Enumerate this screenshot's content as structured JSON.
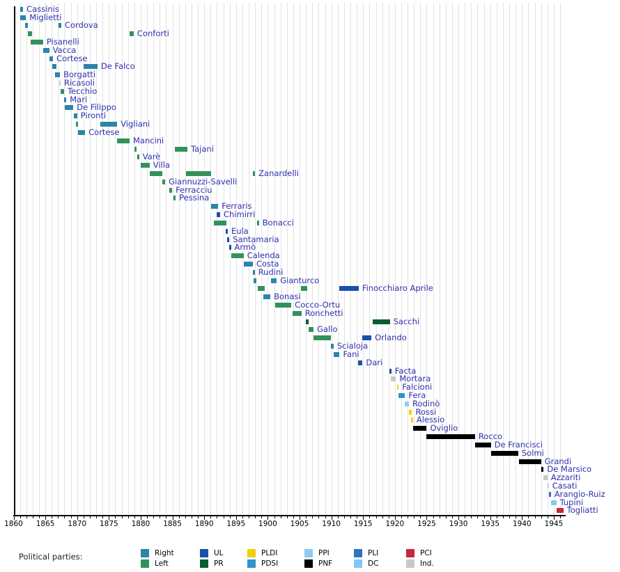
{
  "legend": {
    "title": "Political parties:",
    "columns": [
      [
        "right",
        "left"
      ],
      [
        "ul",
        "pr"
      ],
      [
        "pldi",
        "pdsi"
      ],
      [
        "ppi",
        "pnf"
      ],
      [
        "pli",
        "dc"
      ],
      [
        "pci",
        "ind"
      ]
    ],
    "position": "bottom"
  },
  "chart_data": {
    "type": "bar",
    "subtype": "gantt-timeline",
    "title": "",
    "xlabel": "",
    "ylabel": "",
    "x_axis": {
      "min": 1860,
      "max": 1946.8,
      "labeled_tick_years": [
        1860,
        1865,
        1870,
        1875,
        1880,
        1885,
        1890,
        1895,
        1900,
        1905,
        1910,
        1915,
        1920,
        1925,
        1930,
        1935,
        1940,
        1945
      ],
      "minor_tick_interval": 1
    },
    "grid": "yearly-vertical",
    "parties": {
      "right": {
        "label": "Right",
        "color": "#2a85a8"
      },
      "left": {
        "label": "Left",
        "color": "#33915c"
      },
      "ul": {
        "label": "UL",
        "color": "#1a4fae"
      },
      "pr": {
        "label": "PR",
        "color": "#0b5d31"
      },
      "pldi": {
        "label": "PLDI",
        "color": "#f2ce0d"
      },
      "pdsi": {
        "label": "PDSI",
        "color": "#2d95c8"
      },
      "ppi": {
        "label": "PPI",
        "color": "#8ecbf2"
      },
      "pnf": {
        "label": "PNF",
        "color": "#000000"
      },
      "pli": {
        "label": "PLI",
        "color": "#3173bd"
      },
      "dc": {
        "label": "DC",
        "color": "#85c6f4"
      },
      "pci": {
        "label": "PCI",
        "color": "#c4293a"
      },
      "ind": {
        "label": "Ind.",
        "color": "#c8c8c8"
      }
    },
    "ministers": [
      {
        "name": "Cassinis",
        "terms": [
          {
            "from": 1861.05,
            "to": 1861.5,
            "party": "right"
          }
        ]
      },
      {
        "name": "Miglietti",
        "terms": [
          {
            "from": 1861.0,
            "to": 1861.95,
            "party": "right"
          }
        ]
      },
      {
        "name": "Cordova",
        "terms": [
          {
            "from": 1861.8,
            "to": 1862.25,
            "party": "right"
          },
          {
            "from": 1867.1,
            "to": 1867.5,
            "party": "right"
          }
        ]
      },
      {
        "name": "Conforti",
        "terms": [
          {
            "from": 1862.25,
            "to": 1862.9,
            "party": "left"
          },
          {
            "from": 1878.25,
            "to": 1878.9,
            "party": "left"
          }
        ]
      },
      {
        "name": "Pisanelli",
        "terms": [
          {
            "from": 1862.7,
            "to": 1864.65,
            "party": "left"
          }
        ]
      },
      {
        "name": "Vacca",
        "terms": [
          {
            "from": 1864.65,
            "to": 1865.6,
            "party": "right"
          }
        ]
      },
      {
        "name": "Cortese",
        "terms": [
          {
            "from": 1865.6,
            "to": 1866.2,
            "party": "right"
          }
        ]
      },
      {
        "name": "De Falco",
        "terms": [
          {
            "from": 1866.1,
            "to": 1866.7,
            "party": "right"
          },
          {
            "from": 1871.0,
            "to": 1873.2,
            "party": "right"
          }
        ]
      },
      {
        "name": "Borgatti",
        "terms": [
          {
            "from": 1866.5,
            "to": 1867.3,
            "party": "right"
          }
        ]
      },
      {
        "name": "Ricasoli",
        "terms": [
          {
            "from": 1867.2,
            "to": 1867.4,
            "party": "ind"
          }
        ]
      },
      {
        "name": "Tecchio",
        "terms": [
          {
            "from": 1867.4,
            "to": 1867.95,
            "party": "left"
          }
        ]
      },
      {
        "name": "Mari",
        "terms": [
          {
            "from": 1867.95,
            "to": 1868.3,
            "party": "right"
          }
        ]
      },
      {
        "name": "De Filippo",
        "terms": [
          {
            "from": 1868.1,
            "to": 1869.4,
            "party": "right"
          }
        ]
      },
      {
        "name": "Pironti",
        "terms": [
          {
            "from": 1869.5,
            "to": 1870.0,
            "party": "right"
          }
        ]
      },
      {
        "name": "Vigliani",
        "terms": [
          {
            "from": 1869.85,
            "to": 1870.1,
            "party": "left"
          },
          {
            "from": 1873.6,
            "to": 1876.3,
            "party": "right"
          }
        ]
      },
      {
        "name": "Cortese",
        "terms": [
          {
            "from": 1870.1,
            "to": 1871.25,
            "party": "right"
          }
        ]
      },
      {
        "name": "Mancini",
        "terms": [
          {
            "from": 1876.3,
            "to": 1878.25,
            "party": "left"
          }
        ]
      },
      {
        "name": "Tajani",
        "terms": [
          {
            "from": 1879.0,
            "to": 1879.35,
            "party": "left"
          },
          {
            "from": 1885.4,
            "to": 1887.35,
            "party": "left"
          }
        ]
      },
      {
        "name": "Varè",
        "terms": [
          {
            "from": 1879.45,
            "to": 1879.75,
            "party": "left"
          }
        ]
      },
      {
        "name": "Villa",
        "terms": [
          {
            "from": 1880.0,
            "to": 1881.4,
            "party": "left"
          }
        ]
      },
      {
        "name": "Zanardelli",
        "terms": [
          {
            "from": 1881.4,
            "to": 1883.4,
            "party": "left"
          },
          {
            "from": 1887.1,
            "to": 1891.05,
            "party": "left"
          },
          {
            "from": 1897.6,
            "to": 1898.0,
            "party": "left"
          }
        ]
      },
      {
        "name": "Giannuzzi-Savelli",
        "terms": [
          {
            "from": 1883.4,
            "to": 1883.85,
            "party": "left"
          }
        ]
      },
      {
        "name": "Ferracciu",
        "terms": [
          {
            "from": 1884.5,
            "to": 1884.95,
            "party": "left"
          }
        ]
      },
      {
        "name": "Pessina",
        "terms": [
          {
            "from": 1885.15,
            "to": 1885.5,
            "party": "left"
          }
        ]
      },
      {
        "name": "Ferraris",
        "terms": [
          {
            "from": 1891.1,
            "to": 1892.2,
            "party": "right"
          }
        ]
      },
      {
        "name": "Chimirri",
        "terms": [
          {
            "from": 1892.0,
            "to": 1892.5,
            "party": "ul"
          }
        ]
      },
      {
        "name": "Bonacci",
        "terms": [
          {
            "from": 1891.5,
            "to": 1893.5,
            "party": "left"
          },
          {
            "from": 1898.3,
            "to": 1898.6,
            "party": "left"
          }
        ]
      },
      {
        "name": "Eula",
        "terms": [
          {
            "from": 1893.4,
            "to": 1893.7,
            "party": "ul"
          }
        ]
      },
      {
        "name": "Santamaria",
        "terms": [
          {
            "from": 1893.6,
            "to": 1893.95,
            "party": "ul"
          }
        ]
      },
      {
        "name": "Armò",
        "terms": [
          {
            "from": 1893.9,
            "to": 1894.2,
            "party": "ul"
          }
        ]
      },
      {
        "name": "Calenda",
        "terms": [
          {
            "from": 1894.25,
            "to": 1896.2,
            "party": "left"
          }
        ]
      },
      {
        "name": "Costa",
        "terms": [
          {
            "from": 1896.2,
            "to": 1897.65,
            "party": "right"
          }
        ]
      },
      {
        "name": "Rudinì",
        "terms": [
          {
            "from": 1897.65,
            "to": 1897.95,
            "party": "right"
          }
        ]
      },
      {
        "name": "Gianturco",
        "terms": [
          {
            "from": 1897.8,
            "to": 1898.15,
            "party": "right"
          },
          {
            "from": 1900.5,
            "to": 1901.4,
            "party": "right"
          }
        ]
      },
      {
        "name": "Finocchiaro Aprile",
        "terms": [
          {
            "from": 1898.4,
            "to": 1899.5,
            "party": "left"
          },
          {
            "from": 1905.2,
            "to": 1906.2,
            "party": "left"
          },
          {
            "from": 1911.2,
            "to": 1914.3,
            "party": "ul"
          }
        ]
      },
      {
        "name": "Bonasi",
        "terms": [
          {
            "from": 1899.3,
            "to": 1900.4,
            "party": "right"
          }
        ]
      },
      {
        "name": "Cocco-Ortu",
        "terms": [
          {
            "from": 1901.2,
            "to": 1903.7,
            "party": "left"
          }
        ]
      },
      {
        "name": "Ronchetti",
        "terms": [
          {
            "from": 1903.9,
            "to": 1905.3,
            "party": "left"
          }
        ]
      },
      {
        "name": "Sacchi",
        "terms": [
          {
            "from": 1906.0,
            "to": 1906.4,
            "party": "pr"
          },
          {
            "from": 1916.5,
            "to": 1919.2,
            "party": "pr"
          }
        ]
      },
      {
        "name": "Gallo",
        "terms": [
          {
            "from": 1906.4,
            "to": 1907.2,
            "party": "left"
          }
        ]
      },
      {
        "name": "Orlando",
        "terms": [
          {
            "from": 1907.2,
            "to": 1909.9,
            "party": "left"
          },
          {
            "from": 1914.9,
            "to": 1916.3,
            "party": "ul"
          }
        ]
      },
      {
        "name": "Scialoja",
        "terms": [
          {
            "from": 1909.9,
            "to": 1910.35,
            "party": "right"
          }
        ]
      },
      {
        "name": "Fani",
        "terms": [
          {
            "from": 1910.35,
            "to": 1911.3,
            "party": "right"
          }
        ]
      },
      {
        "name": "Dari",
        "terms": [
          {
            "from": 1914.2,
            "to": 1914.9,
            "party": "ul"
          }
        ]
      },
      {
        "name": "Facta",
        "terms": [
          {
            "from": 1919.1,
            "to": 1919.45,
            "party": "ul"
          }
        ]
      },
      {
        "name": "Mortara",
        "terms": [
          {
            "from": 1919.4,
            "to": 1920.15,
            "party": "ind"
          }
        ]
      },
      {
        "name": "Falcioni",
        "terms": [
          {
            "from": 1920.3,
            "to": 1920.6,
            "party": "pldi"
          }
        ]
      },
      {
        "name": "Fera",
        "terms": [
          {
            "from": 1920.6,
            "to": 1921.6,
            "party": "pdsi"
          }
        ]
      },
      {
        "name": "Rodinò",
        "terms": [
          {
            "from": 1921.5,
            "to": 1922.2,
            "party": "ppi"
          }
        ]
      },
      {
        "name": "Rossi",
        "terms": [
          {
            "from": 1922.2,
            "to": 1922.7,
            "party": "pldi"
          }
        ]
      },
      {
        "name": "Alessio",
        "terms": [
          {
            "from": 1922.5,
            "to": 1922.85,
            "party": "pldi"
          }
        ]
      },
      {
        "name": "Oviglio",
        "terms": [
          {
            "from": 1922.9,
            "to": 1925.0,
            "party": "pnf"
          }
        ]
      },
      {
        "name": "Rocco",
        "terms": [
          {
            "from": 1925.0,
            "to": 1932.6,
            "party": "pnf"
          }
        ]
      },
      {
        "name": "De Francisci",
        "terms": [
          {
            "from": 1932.6,
            "to": 1935.1,
            "party": "pnf"
          }
        ]
      },
      {
        "name": "Solmi",
        "terms": [
          {
            "from": 1935.1,
            "to": 1939.4,
            "party": "pnf"
          }
        ]
      },
      {
        "name": "Grandi",
        "terms": [
          {
            "from": 1939.5,
            "to": 1943.0,
            "party": "pnf"
          }
        ]
      },
      {
        "name": "De Marsico",
        "terms": [
          {
            "from": 1943.0,
            "to": 1943.4,
            "party": "pnf"
          }
        ]
      },
      {
        "name": "Azzariti",
        "terms": [
          {
            "from": 1943.4,
            "to": 1944.0,
            "party": "ind"
          }
        ]
      },
      {
        "name": "Casati",
        "terms": [
          {
            "from": 1944.0,
            "to": 1944.2,
            "party": "ind"
          }
        ]
      },
      {
        "name": "Arangio-Ruiz",
        "terms": [
          {
            "from": 1944.2,
            "to": 1944.55,
            "party": "pli"
          }
        ]
      },
      {
        "name": "Tupini",
        "terms": [
          {
            "from": 1944.6,
            "to": 1945.4,
            "party": "dc"
          }
        ]
      },
      {
        "name": "Togliatti",
        "terms": [
          {
            "from": 1945.4,
            "to": 1946.5,
            "party": "pci"
          }
        ]
      }
    ]
  }
}
